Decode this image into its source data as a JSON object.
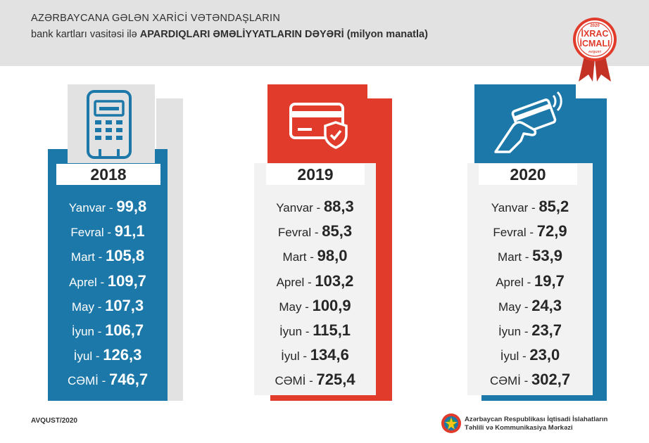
{
  "header": {
    "title_line1": "AZƏRBAYCANA GƏLƏN XARİCİ VƏTƏNDAŞLARIN",
    "title_line2_regular": "bank kartları vasitəsi ilə",
    "title_line2_bold": "APARDIQLARI ƏMƏLİYYATLARIN DƏYƏRİ (milyon manatla)"
  },
  "badge": {
    "year": "2020",
    "line1": "İXRAC",
    "line2": "İCMALI",
    "sub": "AVQUST"
  },
  "colors": {
    "blue": "#1c78a8",
    "red": "#e13b2b",
    "gray": "#e2e2e2",
    "dark": "#262626"
  },
  "columns": [
    {
      "year": "2018",
      "icon": "pos-terminal-icon",
      "rows": [
        {
          "month": "Yanvar",
          "value": "99,8"
        },
        {
          "month": "Fevral",
          "value": "91,1"
        },
        {
          "month": "Mart",
          "value": "105,8"
        },
        {
          "month": "Aprel",
          "value": "109,7"
        },
        {
          "month": "May",
          "value": "107,3"
        },
        {
          "month": "İyun",
          "value": "106,7"
        },
        {
          "month": "İyul",
          "value": "126,3"
        },
        {
          "month": "CƏMİ",
          "value": "746,7"
        }
      ]
    },
    {
      "year": "2019",
      "icon": "secure-card-icon",
      "rows": [
        {
          "month": "Yanvar",
          "value": "88,3"
        },
        {
          "month": "Fevral",
          "value": "85,3"
        },
        {
          "month": "Mart",
          "value": "98,0"
        },
        {
          "month": "Aprel",
          "value": "103,2"
        },
        {
          "month": "May",
          "value": "100,9"
        },
        {
          "month": "İyun",
          "value": "115,1"
        },
        {
          "month": "İyul",
          "value": "134,6"
        },
        {
          "month": "CƏMİ",
          "value": "725,4"
        }
      ]
    },
    {
      "year": "2020",
      "icon": "contactless-card-icon",
      "rows": [
        {
          "month": "Yanvar",
          "value": "85,2"
        },
        {
          "month": "Fevral",
          "value": "72,9"
        },
        {
          "month": "Mart",
          "value": "53,9"
        },
        {
          "month": "Aprel",
          "value": "19,7"
        },
        {
          "month": "May",
          "value": "24,3"
        },
        {
          "month": "İyun",
          "value": "23,7"
        },
        {
          "month": "İyul",
          "value": "23,0"
        },
        {
          "month": "CƏMİ",
          "value": "302,7"
        }
      ]
    }
  ],
  "footer": {
    "date": "AVQUST/2020",
    "org_line1": "Azərbaycan Respublikası İqtisadi İslahatların",
    "org_line2": "Təhlili və Kommunikasiya Mərkəzi"
  }
}
